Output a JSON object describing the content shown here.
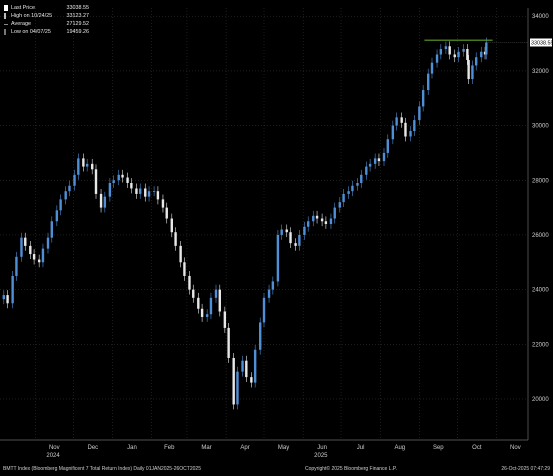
{
  "legend": [
    {
      "label": "Last Price",
      "value": "33038.55",
      "color": "#ffffff"
    },
    {
      "label": "High on 10/24/25",
      "value": "33123.27",
      "color": "#bbbbbb"
    },
    {
      "label": "Average",
      "value": "27129.52",
      "color": "#888888"
    },
    {
      "label": "Low on 04/07/25",
      "value": "19459.26",
      "color": "#777777"
    }
  ],
  "last_price_tag": "33038.55",
  "footer": {
    "left": "BMTT Index (Bloomberg Magnificent 7 Total Return Index) Daily 01JAN2025-26OCT2025",
    "center": "Copyright© 2025 Bloomberg Finance L.P.",
    "right": "26-Oct-2025 07:47:29"
  },
  "colors": {
    "background": "#000000",
    "up_candle": "#4f8fd6",
    "down_candle": "#e8e8e8",
    "high_line": "#5fa028",
    "grid": "#3a3a3a",
    "text": "#cfcfcf"
  },
  "chart_data": {
    "type": "candlestick",
    "grid": true,
    "y_axis_side": "right",
    "ylim": [
      18500,
      34300
    ],
    "y_ticks": [
      "34000",
      "32000",
      "30000",
      "28000",
      "26000",
      "24000",
      "22000",
      "20000"
    ],
    "x_labels": [
      {
        "label": "Nov",
        "date": "2024-11-01"
      },
      {
        "label": "Dec",
        "date": "2024-12-01"
      },
      {
        "label": "Jan",
        "date": "2025-01-01"
      },
      {
        "label": "Feb",
        "date": "2025-02-01"
      },
      {
        "label": "Mar",
        "date": "2025-03-01"
      },
      {
        "label": "Apr",
        "date": "2025-04-01"
      },
      {
        "label": "May",
        "date": "2025-05-01"
      },
      {
        "label": "Jun",
        "date": "2025-06-01"
      },
      {
        "label": "Jul",
        "date": "2025-07-01"
      },
      {
        "label": "Aug",
        "date": "2025-08-01"
      },
      {
        "label": "Sep",
        "date": "2025-09-01"
      },
      {
        "label": "Oct",
        "date": "2025-10-01"
      },
      {
        "label": "Nov",
        "date": "2025-11-01"
      }
    ],
    "year_labels": [
      {
        "label": "2024",
        "date": "2024-11-15"
      },
      {
        "label": "2025",
        "date": "2025-06-15"
      }
    ],
    "x_range": [
      "2024-10-04",
      "2025-11-26"
    ],
    "high_line": {
      "value": 33123.27,
      "from": "2025-09-05",
      "to": "2025-10-29"
    },
    "series": [
      {
        "name": "Last Price",
        "values": [
          {
            "date": "2024-10-07",
            "close": 23800
          },
          {
            "date": "2024-10-10",
            "close": 23500
          },
          {
            "date": "2024-10-14",
            "close": 24500
          },
          {
            "date": "2024-10-17",
            "close": 25200
          },
          {
            "date": "2024-10-21",
            "close": 25900
          },
          {
            "date": "2024-10-24",
            "close": 25600
          },
          {
            "date": "2024-10-28",
            "close": 25300
          },
          {
            "date": "2024-10-31",
            "close": 25100
          },
          {
            "date": "2024-11-04",
            "close": 25000
          },
          {
            "date": "2024-11-07",
            "close": 25500
          },
          {
            "date": "2024-11-11",
            "close": 25900
          },
          {
            "date": "2024-11-14",
            "close": 26500
          },
          {
            "date": "2024-11-18",
            "close": 26900
          },
          {
            "date": "2024-11-21",
            "close": 27300
          },
          {
            "date": "2024-11-25",
            "close": 27600
          },
          {
            "date": "2024-11-28",
            "close": 27800
          },
          {
            "date": "2024-12-02",
            "close": 28200
          },
          {
            "date": "2024-12-05",
            "close": 28800
          },
          {
            "date": "2024-12-09",
            "close": 28500
          },
          {
            "date": "2024-12-12",
            "close": 28600
          },
          {
            "date": "2024-12-16",
            "close": 28400
          },
          {
            "date": "2024-12-19",
            "close": 27500
          },
          {
            "date": "2024-12-23",
            "close": 27000
          },
          {
            "date": "2024-12-26",
            "close": 27400
          },
          {
            "date": "2024-12-30",
            "close": 27900
          },
          {
            "date": "2025-01-02",
            "close": 28000
          },
          {
            "date": "2025-01-06",
            "close": 28200
          },
          {
            "date": "2025-01-09",
            "close": 28100
          },
          {
            "date": "2025-01-13",
            "close": 27900
          },
          {
            "date": "2025-01-16",
            "close": 27700
          },
          {
            "date": "2025-01-20",
            "close": 27500
          },
          {
            "date": "2025-01-23",
            "close": 27700
          },
          {
            "date": "2025-01-27",
            "close": 27400
          },
          {
            "date": "2025-01-30",
            "close": 27600
          },
          {
            "date": "2025-02-03",
            "close": 27600
          },
          {
            "date": "2025-02-06",
            "close": 27300
          },
          {
            "date": "2025-02-10",
            "close": 27000
          },
          {
            "date": "2025-02-13",
            "close": 26600
          },
          {
            "date": "2025-02-17",
            "close": 26100
          },
          {
            "date": "2025-02-20",
            "close": 25600
          },
          {
            "date": "2025-02-24",
            "close": 25000
          },
          {
            "date": "2025-02-27",
            "close": 24500
          },
          {
            "date": "2025-03-03",
            "close": 24000
          },
          {
            "date": "2025-03-06",
            "close": 23700
          },
          {
            "date": "2025-03-10",
            "close": 23300
          },
          {
            "date": "2025-03-13",
            "close": 23000
          },
          {
            "date": "2025-03-17",
            "close": 23100
          },
          {
            "date": "2025-03-20",
            "close": 23700
          },
          {
            "date": "2025-03-24",
            "close": 24000
          },
          {
            "date": "2025-03-27",
            "close": 23200
          },
          {
            "date": "2025-03-31",
            "close": 22600
          },
          {
            "date": "2025-04-03",
            "close": 21500
          },
          {
            "date": "2025-04-07",
            "close": 19800
          },
          {
            "date": "2025-04-10",
            "close": 21000
          },
          {
            "date": "2025-04-14",
            "close": 21400
          },
          {
            "date": "2025-04-17",
            "close": 20800
          },
          {
            "date": "2025-04-21",
            "close": 20600
          },
          {
            "date": "2025-04-24",
            "close": 21800
          },
          {
            "date": "2025-04-28",
            "close": 22800
          },
          {
            "date": "2025-05-01",
            "close": 23700
          },
          {
            "date": "2025-05-05",
            "close": 24000
          },
          {
            "date": "2025-05-08",
            "close": 24300
          },
          {
            "date": "2025-05-12",
            "close": 26000
          },
          {
            "date": "2025-05-15",
            "close": 26200
          },
          {
            "date": "2025-05-19",
            "close": 26100
          },
          {
            "date": "2025-05-22",
            "close": 25700
          },
          {
            "date": "2025-05-26",
            "close": 25600
          },
          {
            "date": "2025-05-29",
            "close": 26000
          },
          {
            "date": "2025-06-02",
            "close": 26300
          },
          {
            "date": "2025-06-05",
            "close": 26500
          },
          {
            "date": "2025-06-09",
            "close": 26700
          },
          {
            "date": "2025-06-12",
            "close": 26600
          },
          {
            "date": "2025-06-16",
            "close": 26500
          },
          {
            "date": "2025-06-19",
            "close": 26400
          },
          {
            "date": "2025-06-23",
            "close": 26600
          },
          {
            "date": "2025-06-26",
            "close": 27000
          },
          {
            "date": "2025-06-30",
            "close": 27200
          },
          {
            "date": "2025-07-03",
            "close": 27500
          },
          {
            "date": "2025-07-07",
            "close": 27600
          },
          {
            "date": "2025-07-10",
            "close": 27800
          },
          {
            "date": "2025-07-14",
            "close": 27900
          },
          {
            "date": "2025-07-17",
            "close": 28200
          },
          {
            "date": "2025-07-21",
            "close": 28500
          },
          {
            "date": "2025-07-24",
            "close": 28600
          },
          {
            "date": "2025-07-28",
            "close": 28800
          },
          {
            "date": "2025-07-31",
            "close": 28700
          },
          {
            "date": "2025-08-04",
            "close": 29000
          },
          {
            "date": "2025-08-07",
            "close": 29500
          },
          {
            "date": "2025-08-11",
            "close": 30000
          },
          {
            "date": "2025-08-14",
            "close": 30300
          },
          {
            "date": "2025-08-18",
            "close": 30100
          },
          {
            "date": "2025-08-21",
            "close": 29600
          },
          {
            "date": "2025-08-25",
            "close": 29800
          },
          {
            "date": "2025-08-28",
            "close": 30200
          },
          {
            "date": "2025-09-01",
            "close": 30700
          },
          {
            "date": "2025-09-04",
            "close": 31300
          },
          {
            "date": "2025-09-08",
            "close": 31900
          },
          {
            "date": "2025-09-11",
            "close": 32300
          },
          {
            "date": "2025-09-15",
            "close": 32600
          },
          {
            "date": "2025-09-18",
            "close": 32800
          },
          {
            "date": "2025-09-22",
            "close": 32900
          },
          {
            "date": "2025-09-25",
            "close": 32600
          },
          {
            "date": "2025-09-29",
            "close": 32500
          },
          {
            "date": "2025-10-02",
            "close": 32700
          },
          {
            "date": "2025-10-06",
            "close": 32800
          },
          {
            "date": "2025-10-09",
            "close": 32400
          },
          {
            "date": "2025-10-10",
            "close": 31700
          },
          {
            "date": "2025-10-13",
            "close": 32200
          },
          {
            "date": "2025-10-16",
            "close": 32500
          },
          {
            "date": "2025-10-20",
            "close": 32700
          },
          {
            "date": "2025-10-23",
            "close": 32600
          },
          {
            "date": "2025-10-24",
            "close": 33038.55
          }
        ]
      }
    ]
  }
}
